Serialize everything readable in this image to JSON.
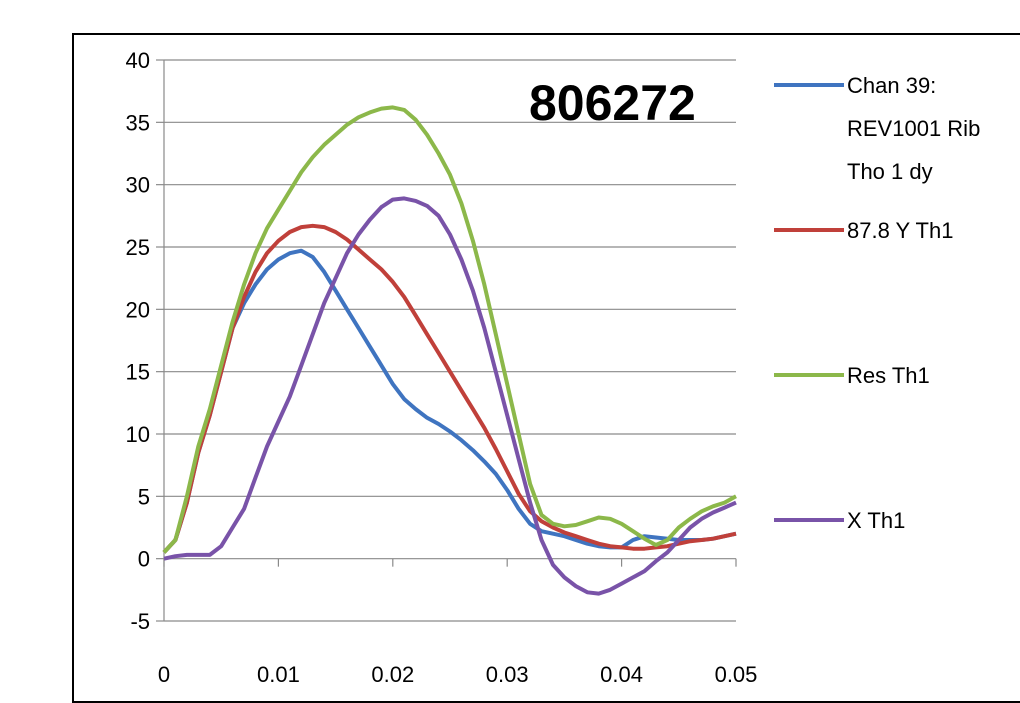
{
  "chart_data": {
    "type": "line",
    "title": "806272",
    "xlabel": "",
    "ylabel": "",
    "xlim": [
      0,
      0.05
    ],
    "ylim": [
      -5,
      40
    ],
    "x_ticks": [
      "0",
      "0.01",
      "0.02",
      "0.03",
      "0.04",
      "0.05"
    ],
    "y_ticks": [
      "40",
      "35",
      "30",
      "25",
      "20",
      "15",
      "10",
      "5",
      "0",
      "-5"
    ],
    "grid": "horizontal",
    "legend_position": "right",
    "series": [
      {
        "name": "Chan 39: REV1001 Rib Tho 1 dy",
        "legend_lines": [
          "Chan 39:",
          "REV1001 Rib",
          "Tho 1 dy"
        ],
        "color": "#3f74c0",
        "x": [
          0,
          0.001,
          0.002,
          0.003,
          0.004,
          0.005,
          0.006,
          0.007,
          0.008,
          0.009,
          0.01,
          0.011,
          0.012,
          0.013,
          0.014,
          0.015,
          0.016,
          0.017,
          0.018,
          0.019,
          0.02,
          0.021,
          0.022,
          0.023,
          0.024,
          0.025,
          0.026,
          0.027,
          0.028,
          0.029,
          0.03,
          0.031,
          0.032,
          0.033,
          0.034,
          0.035,
          0.036,
          0.037,
          0.038,
          0.039,
          0.04,
          0.041,
          0.042,
          0.043,
          0.044,
          0.045,
          0.046,
          0.047,
          0.048,
          0.049,
          0.05
        ],
        "values": [
          0.5,
          1.5,
          4.5,
          8.5,
          11.5,
          15,
          18.5,
          20.5,
          22,
          23.2,
          24,
          24.5,
          24.7,
          24.2,
          23,
          21.5,
          20,
          18.5,
          17,
          15.5,
          14,
          12.8,
          12,
          11.3,
          10.8,
          10.2,
          9.5,
          8.7,
          7.8,
          6.8,
          5.5,
          4,
          2.8,
          2.2,
          2,
          1.8,
          1.5,
          1.2,
          1.0,
          0.9,
          0.9,
          1.5,
          1.8,
          1.7,
          1.6,
          1.5,
          1.5,
          1.5,
          1.6,
          1.8,
          2
        ]
      },
      {
        "name": "87.8 Y Th1",
        "legend_lines": [
          "87.8 Y Th1"
        ],
        "color": "#c0403a",
        "x": [
          0,
          0.001,
          0.002,
          0.003,
          0.004,
          0.005,
          0.006,
          0.007,
          0.008,
          0.009,
          0.01,
          0.011,
          0.012,
          0.013,
          0.014,
          0.015,
          0.016,
          0.017,
          0.018,
          0.019,
          0.02,
          0.021,
          0.022,
          0.023,
          0.024,
          0.025,
          0.026,
          0.027,
          0.028,
          0.029,
          0.03,
          0.031,
          0.032,
          0.033,
          0.034,
          0.035,
          0.036,
          0.037,
          0.038,
          0.039,
          0.04,
          0.041,
          0.042,
          0.043,
          0.044,
          0.045,
          0.046,
          0.047,
          0.048,
          0.049,
          0.05
        ],
        "values": [
          0.5,
          1.5,
          4.5,
          8.5,
          11.5,
          15,
          18.5,
          21,
          23,
          24.5,
          25.5,
          26.2,
          26.6,
          26.7,
          26.6,
          26.2,
          25.6,
          24.8,
          24,
          23.2,
          22.2,
          21,
          19.5,
          18,
          16.5,
          15,
          13.5,
          12,
          10.5,
          8.8,
          7,
          5.2,
          3.8,
          3,
          2.5,
          2.1,
          1.8,
          1.5,
          1.2,
          1.0,
          0.9,
          0.8,
          0.8,
          0.9,
          1.0,
          1.2,
          1.4,
          1.5,
          1.6,
          1.8,
          2
        ]
      },
      {
        "name": "Res Th1",
        "legend_lines": [
          "Res Th1"
        ],
        "color": "#8cb84a",
        "x": [
          0,
          0.001,
          0.002,
          0.003,
          0.004,
          0.005,
          0.006,
          0.007,
          0.008,
          0.009,
          0.01,
          0.011,
          0.012,
          0.013,
          0.014,
          0.015,
          0.016,
          0.017,
          0.018,
          0.019,
          0.02,
          0.021,
          0.022,
          0.023,
          0.024,
          0.025,
          0.026,
          0.027,
          0.028,
          0.029,
          0.03,
          0.031,
          0.032,
          0.033,
          0.034,
          0.035,
          0.036,
          0.037,
          0.038,
          0.039,
          0.04,
          0.041,
          0.042,
          0.043,
          0.044,
          0.045,
          0.046,
          0.047,
          0.048,
          0.049,
          0.05
        ],
        "values": [
          0.5,
          1.5,
          5,
          9,
          12,
          15.5,
          19,
          22,
          24.5,
          26.5,
          28,
          29.5,
          31,
          32.2,
          33.2,
          34,
          34.8,
          35.4,
          35.8,
          36.1,
          36.2,
          36,
          35.2,
          34,
          32.5,
          30.8,
          28.5,
          25.5,
          22,
          18,
          14,
          10,
          6,
          3.5,
          2.8,
          2.6,
          2.7,
          3.0,
          3.3,
          3.2,
          2.8,
          2.2,
          1.6,
          1.1,
          1.5,
          2.5,
          3.2,
          3.8,
          4.2,
          4.5,
          5
        ]
      },
      {
        "name": "X Th1",
        "legend_lines": [
          "X Th1"
        ],
        "color": "#7953a8",
        "x": [
          0,
          0.001,
          0.002,
          0.003,
          0.004,
          0.005,
          0.006,
          0.007,
          0.008,
          0.009,
          0.01,
          0.011,
          0.012,
          0.013,
          0.014,
          0.015,
          0.016,
          0.017,
          0.018,
          0.019,
          0.02,
          0.021,
          0.022,
          0.023,
          0.024,
          0.025,
          0.026,
          0.027,
          0.028,
          0.029,
          0.03,
          0.031,
          0.032,
          0.033,
          0.034,
          0.035,
          0.036,
          0.037,
          0.038,
          0.039,
          0.04,
          0.041,
          0.042,
          0.043,
          0.044,
          0.045,
          0.046,
          0.047,
          0.048,
          0.049,
          0.05
        ],
        "values": [
          0,
          0.2,
          0.3,
          0.3,
          0.3,
          1,
          2.5,
          4,
          6.5,
          9,
          11,
          13,
          15.5,
          18,
          20.5,
          22.5,
          24.5,
          26,
          27.2,
          28.2,
          28.8,
          28.9,
          28.7,
          28.3,
          27.5,
          26,
          24,
          21.5,
          18.5,
          15,
          11.5,
          8,
          4.5,
          1.5,
          -0.5,
          -1.5,
          -2.2,
          -2.7,
          -2.8,
          -2.5,
          -2,
          -1.5,
          -1,
          -0.2,
          0.5,
          1.5,
          2.5,
          3.2,
          3.7,
          4.1,
          4.5
        ]
      }
    ]
  }
}
